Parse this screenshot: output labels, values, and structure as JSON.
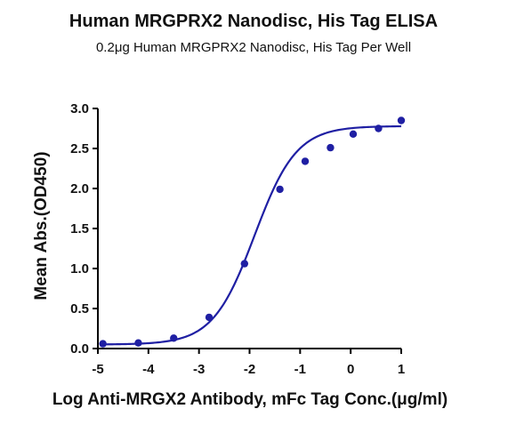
{
  "chart_data": {
    "type": "scatter",
    "title": "Human MRGPRX2 Nanodisc, His Tag ELISA",
    "subtitle": "0.2μg Human MRGPRX2 Nanodisc, His Tag Per Well",
    "xlabel": "Log Anti-MRGX2 Antibody, mFc Tag Conc.(μg/ml)",
    "ylabel": "Mean Abs.(OD450)",
    "xlim": [
      -5,
      1
    ],
    "ylim": [
      0,
      3
    ],
    "x_ticks": [
      "-5",
      "-4",
      "-3",
      "-2",
      "-1",
      "0",
      "1"
    ],
    "y_ticks": [
      "0.0",
      "0.5",
      "1.0",
      "1.5",
      "2.0",
      "2.5",
      "3.0"
    ],
    "grid": false,
    "legend": "none",
    "series_color": "#1f1fa3",
    "points": {
      "x": [
        -4.9,
        -4.2,
        -3.5,
        -2.8,
        -2.1,
        -1.4,
        -0.9,
        -0.4,
        0.05,
        0.55,
        1.0
      ],
      "y": [
        0.06,
        0.07,
        0.13,
        0.39,
        1.06,
        1.99,
        2.34,
        2.51,
        2.68,
        2.75,
        2.85
      ]
    },
    "fit_curve": {
      "type": "4PL",
      "bottom": 0.05,
      "top": 2.78,
      "logEC50": -1.9,
      "hill": 1.05
    }
  }
}
